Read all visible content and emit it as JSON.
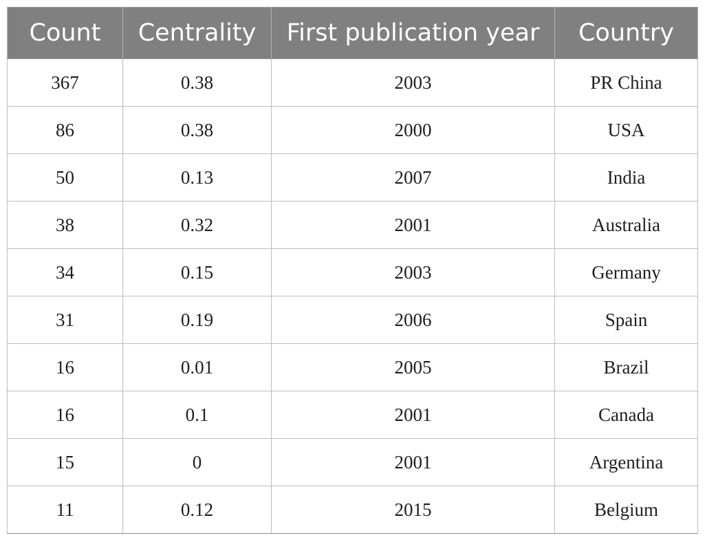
{
  "table": {
    "headers": [
      "Count",
      "Centrality",
      "First publication year",
      "Country"
    ],
    "rows": [
      [
        "367",
        "0.38",
        "2003",
        "PR China"
      ],
      [
        "86",
        "0.38",
        "2000",
        "USA"
      ],
      [
        "50",
        "0.13",
        "2007",
        "India"
      ],
      [
        "38",
        "0.32",
        "2001",
        "Australia"
      ],
      [
        "34",
        "0.15",
        "2003",
        "Germany"
      ],
      [
        "31",
        "0.19",
        "2006",
        "Spain"
      ],
      [
        "16",
        "0.01",
        "2005",
        "Brazil"
      ],
      [
        "16",
        "0.1",
        "2001",
        "Canada"
      ],
      [
        "15",
        "0",
        "2001",
        "Argentina"
      ],
      [
        "11",
        "0.12",
        "2015",
        "Belgium"
      ]
    ]
  },
  "colors": {
    "header_background": "#808080",
    "header_text": "#ffffff",
    "cell_text": "#1e1e1e",
    "grid_lines": "#bcbcbc"
  }
}
